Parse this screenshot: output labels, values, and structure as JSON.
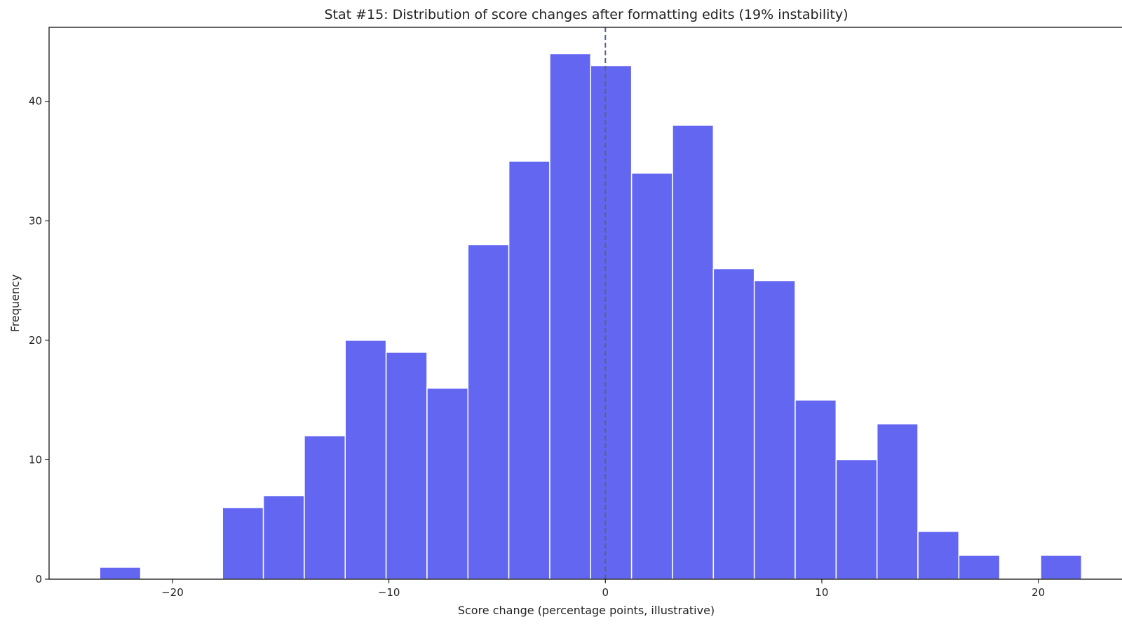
{
  "chart_data": {
    "type": "bar",
    "title": "Stat #15: Distribution of score changes after formatting edits (19% instability)",
    "xlabel": "Score change (percentage points, illustrative)",
    "ylabel": "Frequency",
    "xlim": [
      -25.7,
      23.9
    ],
    "ylim": [
      0,
      46.2
    ],
    "x_ticks": [
      -20,
      -10,
      0,
      10,
      20
    ],
    "x_tick_labels": [
      "−20",
      "−10",
      "0",
      "10",
      "20"
    ],
    "y_ticks": [
      0,
      10,
      20,
      30,
      40
    ],
    "y_tick_labels": [
      "0",
      "10",
      "20",
      "30",
      "40"
    ],
    "bin_edges": [
      -23.36,
      -21.47,
      -19.58,
      -17.69,
      -15.8,
      -13.91,
      -12.02,
      -10.13,
      -8.24,
      -6.35,
      -4.46,
      -2.57,
      -0.68,
      1.21,
      3.1,
      4.99,
      6.88,
      8.77,
      10.66,
      12.55,
      14.44,
      16.33,
      18.22,
      20.11,
      22.0
    ],
    "values": [
      1,
      0,
      0,
      6,
      7,
      12,
      20,
      19,
      16,
      28,
      35,
      44,
      43,
      34,
      38,
      26,
      25,
      15,
      10,
      13,
      4,
      2,
      0,
      2
    ],
    "reference_line_x": 0,
    "grid": false,
    "colors": {
      "bar_fill": "#6366f1",
      "bar_edge": "#ffffff",
      "reference_line": "#5a6478",
      "axis": "#000000"
    }
  }
}
